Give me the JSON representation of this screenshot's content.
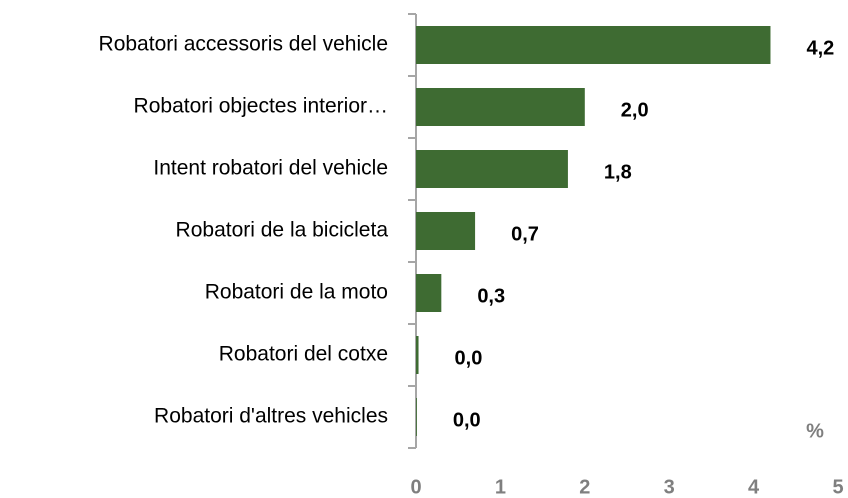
{
  "chart_data": {
    "type": "bar",
    "orientation": "horizontal",
    "categories": [
      "Robatori accessoris del vehicle",
      "Robatori objectes interior…",
      "Intent robatori del vehicle",
      "Robatori de la bicicleta",
      "Robatori de la moto",
      "Robatori del cotxe",
      "Robatori d'altres vehicles"
    ],
    "values": [
      4.2,
      2.0,
      1.8,
      0.7,
      0.3,
      0.03,
      0.01
    ],
    "value_labels": [
      "4,2",
      "2,0",
      "1,8",
      "0,7",
      "0,3",
      "0,0",
      "0,0"
    ],
    "color": "#3e6b32",
    "xlim": [
      0,
      5
    ],
    "xticks": [
      0,
      1,
      2,
      3,
      4,
      5
    ],
    "axis_unit": "%",
    "grid": false
  }
}
